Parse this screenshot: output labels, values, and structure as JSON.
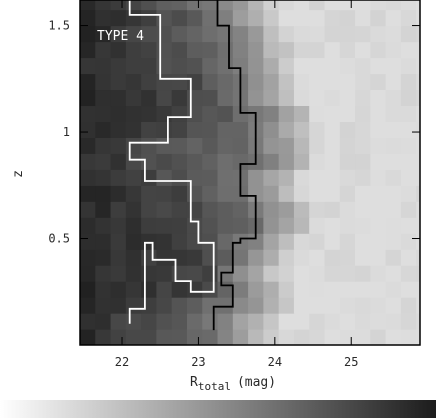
{
  "chart_data": {
    "type": "heatmap",
    "annotation": "TYPE 4",
    "xlabel_main": "R",
    "xlabel_sub": "total",
    "xlabel_unit": "(mag)",
    "ylabel": "z",
    "xlim": [
      21.45,
      25.9
    ],
    "ylim": [
      0.0,
      1.62
    ],
    "x_ticks": [
      22,
      23,
      24,
      25
    ],
    "x_tick_labels": [
      "22",
      "23",
      "24",
      "25"
    ],
    "y_ticks": [
      0.5,
      1.0,
      1.5
    ],
    "y_tick_labels": [
      "0.5",
      "1",
      "1.5"
    ],
    "grid": false,
    "cell_width_mag": 0.2,
    "cell_height_z": 0.075,
    "colorbar": {
      "type": "gradient",
      "from_color": "#ffffff",
      "to_color": "#1c1c1c"
    },
    "white_contour": {
      "x": [
        22.1,
        22.1,
        22.5,
        22.5,
        22.9,
        22.9,
        22.6,
        22.6,
        22.1,
        22.1,
        22.3,
        22.3,
        22.9,
        22.9,
        23.0,
        23.0,
        23.2,
        23.2,
        22.9,
        22.9,
        22.7,
        22.7,
        22.4,
        22.4,
        22.3,
        22.3,
        22.1,
        22.1
      ],
      "z": [
        1.62,
        1.55,
        1.55,
        1.25,
        1.25,
        1.07,
        1.07,
        0.95,
        0.95,
        0.87,
        0.87,
        0.77,
        0.77,
        0.58,
        0.58,
        0.48,
        0.48,
        0.25,
        0.25,
        0.3,
        0.3,
        0.4,
        0.4,
        0.48,
        0.48,
        0.17,
        0.17,
        0.1
      ]
    },
    "black_contour": {
      "x": [
        23.25,
        23.25,
        23.4,
        23.4,
        23.55,
        23.55,
        23.75,
        23.75,
        23.55,
        23.55,
        23.75,
        23.75,
        23.55,
        23.55,
        23.45,
        23.45,
        23.3,
        23.3,
        23.45,
        23.45,
        23.2,
        23.2
      ],
      "z": [
        1.62,
        1.5,
        1.5,
        1.3,
        1.3,
        1.09,
        1.09,
        0.85,
        0.85,
        0.7,
        0.7,
        0.5,
        0.5,
        0.48,
        0.48,
        0.34,
        0.34,
        0.28,
        0.28,
        0.18,
        0.18,
        0.07
      ]
    }
  }
}
